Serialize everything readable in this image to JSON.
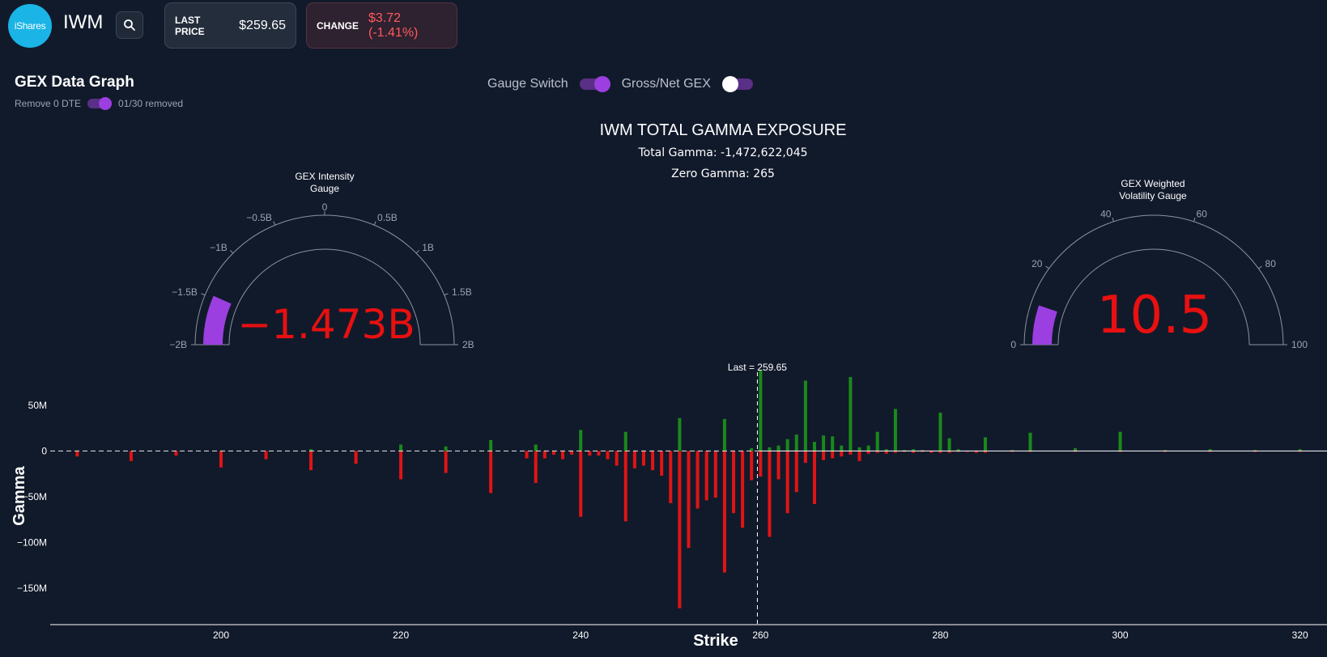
{
  "header": {
    "logo_text": "iShares",
    "ticker": "IWM",
    "last_price_label": "LAST PRICE",
    "last_price_value": "$259.65",
    "change_label": "CHANGE",
    "change_value": "$3.72 (-1.41%)"
  },
  "panel": {
    "title": "GEX Data Graph",
    "remove_dte_label": "Remove 0 DTE",
    "removed_status": "01/30 removed",
    "gauge_switch_label": "Gauge Switch",
    "gross_net_label": "Gross/Net GEX",
    "gauge_switch_on": true,
    "gross_net_on": false
  },
  "colors": {
    "positive": "#1a8a1a",
    "negative": "#e01414",
    "gauge_bar": "#9b3fe0",
    "big_number": "#e81010"
  },
  "chart_data": {
    "type": "bar",
    "title": "IWM TOTAL GAMMA EXPOSURE",
    "subtitle_total": "Total Gamma: -1,472,622,045",
    "subtitle_zero": "Zero Gamma: 265",
    "xlabel": "Strike",
    "ylabel": "Gamma",
    "xlim": [
      181,
      323
    ],
    "ylim": [
      -190,
      88
    ],
    "x_ticks": [
      200,
      220,
      240,
      260,
      280,
      300,
      320
    ],
    "y_ticks": [
      {
        "value": 50,
        "label": "50M"
      },
      {
        "value": 0,
        "label": "0"
      },
      {
        "value": -50,
        "label": "−50M"
      },
      {
        "value": -100,
        "label": "−100M"
      },
      {
        "value": -150,
        "label": "−150M"
      }
    ],
    "units": "M",
    "last_price": 259.65,
    "last_price_label": "Last = 259.65",
    "strikes": [
      184,
      190,
      195,
      200,
      205,
      210,
      215,
      220,
      225,
      230,
      234,
      235,
      236,
      237,
      238,
      239,
      240,
      241,
      242,
      243,
      244,
      245,
      246,
      247,
      248,
      249,
      250,
      251,
      252,
      253,
      254,
      255,
      256,
      257,
      258,
      259,
      260,
      261,
      262,
      263,
      264,
      265,
      266,
      267,
      268,
      269,
      270,
      271,
      272,
      273,
      274,
      275,
      276,
      277,
      278,
      279,
      280,
      281,
      282,
      283,
      284,
      285,
      288,
      290,
      295,
      300,
      305,
      310,
      315,
      320
    ],
    "gamma": [
      -6,
      -11,
      -5,
      -18,
      -9,
      -21,
      -14,
      -31,
      -24,
      -46,
      -8,
      -35,
      -8,
      -4,
      -9,
      -4,
      -72,
      -5,
      -5,
      -9,
      -16,
      -77,
      -19,
      -16,
      -21,
      -27,
      -57,
      -172,
      -106,
      -63,
      -54,
      -51,
      -133,
      -68,
      -84,
      -32,
      -28,
      -94,
      -31,
      -68,
      -45,
      -13,
      -58,
      -10,
      -8,
      -6,
      -4,
      -11,
      -3,
      -2,
      -3,
      -2,
      -1,
      -2,
      -1,
      -2,
      -2,
      -2,
      -1,
      -1,
      -2,
      -2,
      -1,
      -1,
      -1,
      -1,
      -1,
      -1,
      -1,
      -1
    ],
    "gamma_pos": [
      0,
      0,
      0,
      0,
      0,
      2,
      0,
      7,
      5,
      12,
      0,
      7,
      0,
      0,
      0,
      0,
      23,
      0,
      0,
      0,
      0,
      21,
      0,
      0,
      0,
      0,
      0,
      36,
      0,
      0,
      0,
      0,
      35,
      0,
      0,
      3,
      88,
      4,
      6,
      13,
      18,
      77,
      10,
      17,
      16,
      6,
      81,
      4,
      6,
      21,
      2,
      46,
      1,
      2,
      1,
      0,
      42,
      14,
      2,
      0,
      0,
      15,
      1,
      20,
      3,
      21,
      1,
      2,
      1,
      2
    ],
    "gauges": [
      {
        "title_line1": "GEX Intensity",
        "title_line2": "Gauge",
        "value_text": "−1.473B",
        "value": -1.473,
        "min": -2,
        "max": 2,
        "tick_labels": [
          "−2B",
          "−1.5B",
          "−1B",
          "−0.5B",
          "0",
          "0.5B",
          "1B",
          "1.5B",
          "2B"
        ]
      },
      {
        "title_line1": "GEX Weighted",
        "title_line2": "Volatility Gauge",
        "value_text": "10.5",
        "value": 10.5,
        "min": 0,
        "max": 100,
        "tick_labels": [
          "0",
          "20",
          "40",
          "60",
          "80",
          "100"
        ]
      }
    ]
  }
}
